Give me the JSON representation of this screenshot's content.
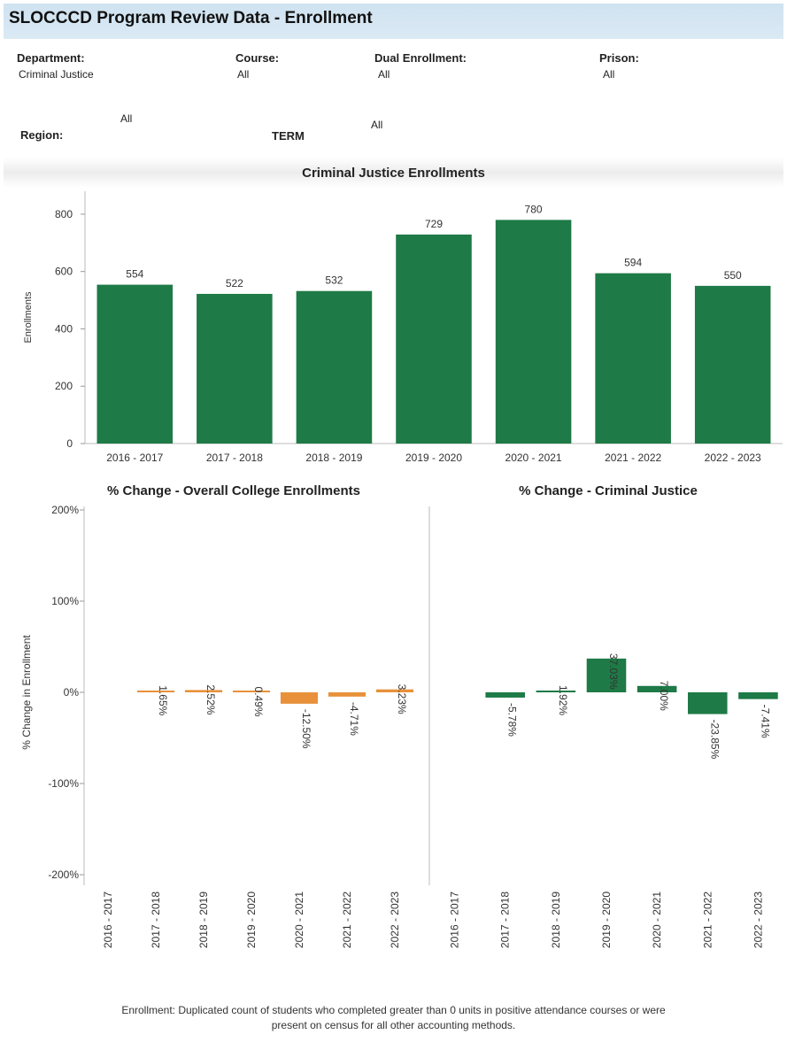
{
  "header": {
    "title": "SLOCCCD Program Review Data - Enrollment"
  },
  "filters": {
    "department": {
      "label": "Department:",
      "value": "Criminal Justice"
    },
    "course": {
      "label": "Course:",
      "value": "All"
    },
    "dual_enrollment": {
      "label": "Dual Enrollment:",
      "value": "All"
    },
    "prison": {
      "label": "Prison:",
      "value": "All"
    },
    "region": {
      "label": "Region:",
      "value": "All"
    },
    "term": {
      "label": "TERM",
      "value": "All"
    }
  },
  "colors": {
    "green": "#1e7a46",
    "orange": "#e8913a",
    "title_bar": "#d6e6f2"
  },
  "footnote": {
    "line1": "Enrollment: Duplicated count of students who completed greater than 0 units in positive attendance courses or were",
    "line2": "present on census for all other accounting methods."
  },
  "chart_data": [
    {
      "type": "bar",
      "title": "Criminal Justice Enrollments",
      "ylabel": "Enrollments",
      "xlabel": "",
      "categories": [
        "2016 - 2017",
        "2017 - 2018",
        "2018 - 2019",
        "2019 - 2020",
        "2020 - 2021",
        "2021 - 2022",
        "2022 - 2023"
      ],
      "values": [
        554,
        522,
        532,
        729,
        780,
        594,
        550
      ],
      "value_labels": [
        "554",
        "522",
        "532",
        "729",
        "780",
        "594",
        "550"
      ],
      "ylim": [
        0,
        880
      ],
      "yticks": [
        0,
        200,
        400,
        600,
        800
      ],
      "ytick_labels": [
        "0",
        "200",
        "400",
        "600",
        "800"
      ],
      "color": "#1e7a46"
    },
    {
      "type": "bar",
      "title": "% Change - Overall College Enrollments",
      "ylabel": "% Change in Enrollment",
      "xlabel": "",
      "categories": [
        "2016 - 2017",
        "2017 - 2018",
        "2018 - 2019",
        "2019 - 2020",
        "2020 - 2021",
        "2021 - 2022",
        "2022 - 2023"
      ],
      "values": [
        null,
        1.65,
        2.52,
        0.49,
        -12.5,
        -4.71,
        3.23
      ],
      "value_labels": [
        "",
        "1.65%",
        "2.52%",
        "0.49%",
        "-12.50%",
        "-4.71%",
        "3.23%"
      ],
      "ylim": [
        -200,
        200
      ],
      "yticks": [
        -200,
        -100,
        0,
        100,
        200
      ],
      "ytick_labels": [
        "-200%",
        "-100%",
        "0%",
        "100%",
        "200%"
      ],
      "color": "#e8913a"
    },
    {
      "type": "bar",
      "title": "% Change - Criminal Justice",
      "ylabel": "",
      "xlabel": "",
      "categories": [
        "2016 - 2017",
        "2017 - 2018",
        "2018 - 2019",
        "2019 - 2020",
        "2020 - 2021",
        "2021 - 2022",
        "2022 - 2023"
      ],
      "values": [
        null,
        -5.78,
        1.92,
        37.03,
        7.0,
        -23.85,
        -7.41
      ],
      "value_labels": [
        "",
        "-5.78%",
        "1.92%",
        "37.03%",
        "7.00%",
        "-23.85%",
        "-7.41%"
      ],
      "ylim": [
        -200,
        200
      ],
      "color": "#1e7a46"
    }
  ]
}
